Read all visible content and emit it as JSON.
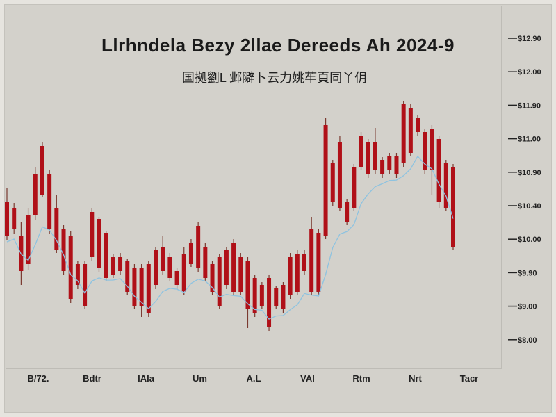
{
  "chart_data": {
    "type": "candlestick",
    "title": "Llrhndela Bezy 2llae Dereeds Ah 2024-9",
    "subtitle": "国拠劉L 邺隦卜云力姚䒜頁同丫仴",
    "xlabel": "",
    "ylabel": "",
    "ylim": [
      0,
      112
    ],
    "grid": false,
    "legend": "none",
    "y_tick_labels": [
      "$12.90",
      "$12.00",
      "$11.90",
      "$11.00",
      "$10.90",
      "$10.40",
      "$10.00",
      "$9.90",
      "$9.00",
      "$8.00"
    ],
    "x_tick_labels": [
      "B/72.",
      "Bdtr",
      "lAla",
      "Um",
      "A.L",
      "VAl",
      "Rtm",
      "Nrt",
      "Tacr"
    ],
    "candles": [
      [
        52.5,
        40,
        57.5,
        38.75
      ],
      [
        50,
        42.5,
        52,
        41
      ],
      [
        40,
        27.5,
        45,
        22.5
      ],
      [
        47.5,
        30,
        50,
        28
      ],
      [
        62.5,
        47.5,
        65,
        46
      ],
      [
        72.5,
        55,
        74,
        54
      ],
      [
        62.5,
        42.5,
        64,
        41
      ],
      [
        50,
        35,
        55,
        34
      ],
      [
        42.5,
        27.5,
        44,
        26
      ],
      [
        40,
        17.5,
        42,
        16
      ],
      [
        30,
        22.5,
        31,
        21
      ],
      [
        30,
        15,
        31,
        14
      ],
      [
        48.75,
        32.5,
        50,
        31
      ],
      [
        46.25,
        28.75,
        47,
        27
      ],
      [
        41.25,
        25,
        42,
        24
      ],
      [
        32.5,
        26.25,
        33.5,
        25
      ],
      [
        32.5,
        27.5,
        34,
        26
      ],
      [
        31.25,
        20,
        32,
        19
      ],
      [
        28.75,
        15,
        30,
        14
      ],
      [
        28.75,
        15,
        30,
        11
      ],
      [
        30,
        12.5,
        31,
        11
      ],
      [
        35,
        22.5,
        36,
        21
      ],
      [
        36.25,
        27.5,
        40,
        26
      ],
      [
        32.5,
        25,
        34,
        24
      ],
      [
        27.5,
        22.5,
        28.5,
        21
      ],
      [
        33.75,
        20,
        36,
        19
      ],
      [
        37.5,
        30,
        39,
        29
      ],
      [
        43.75,
        28.75,
        45,
        27
      ],
      [
        36.25,
        25,
        37.5,
        24
      ],
      [
        30,
        20,
        31,
        19
      ],
      [
        32.5,
        15,
        33.5,
        14
      ],
      [
        35,
        22.5,
        36,
        21
      ],
      [
        37.5,
        20,
        39,
        19
      ],
      [
        32.5,
        20,
        34,
        19
      ],
      [
        31.25,
        13.75,
        32.5,
        7
      ],
      [
        25,
        12.5,
        26,
        11
      ],
      [
        22.5,
        15,
        23.5,
        14
      ],
      [
        25,
        7.5,
        26,
        6
      ],
      [
        21.25,
        15,
        22,
        14
      ],
      [
        22.5,
        13.75,
        23.5,
        12.5
      ],
      [
        32.5,
        18.75,
        34,
        17.5
      ],
      [
        33.75,
        20,
        35,
        19
      ],
      [
        33.75,
        27.5,
        35,
        26
      ],
      [
        42.5,
        20,
        47,
        19
      ],
      [
        41.25,
        20,
        42.5,
        19
      ],
      [
        80,
        40,
        82.5,
        39
      ],
      [
        66.25,
        52.5,
        67.5,
        51
      ],
      [
        73.75,
        50,
        76,
        49
      ],
      [
        52.5,
        45,
        53.5,
        44
      ],
      [
        65,
        50,
        66,
        49
      ],
      [
        76.25,
        65,
        77.5,
        64
      ],
      [
        73.75,
        62.5,
        75,
        61
      ],
      [
        73.75,
        63.75,
        79,
        62.5
      ],
      [
        67.5,
        62.5,
        68.5,
        61
      ],
      [
        68.75,
        63.75,
        70,
        62.5
      ],
      [
        68.75,
        62.5,
        70,
        61
      ],
      [
        87.5,
        66.25,
        88.5,
        65
      ],
      [
        86.25,
        70,
        87.5,
        69
      ],
      [
        82.5,
        77.5,
        83.5,
        76
      ],
      [
        77.5,
        63.75,
        78.5,
        62.5
      ],
      [
        78.75,
        63.75,
        80,
        55
      ],
      [
        75,
        52.5,
        76,
        50
      ],
      [
        66.25,
        50,
        67.5,
        49
      ],
      [
        65,
        36.25,
        66,
        35
      ]
    ],
    "candle_format": [
      "open",
      "close",
      "high",
      "low"
    ],
    "colors": {
      "candle": "#b01018",
      "moving_average": "#8ec3e0",
      "background": "#d3d1cb"
    }
  }
}
